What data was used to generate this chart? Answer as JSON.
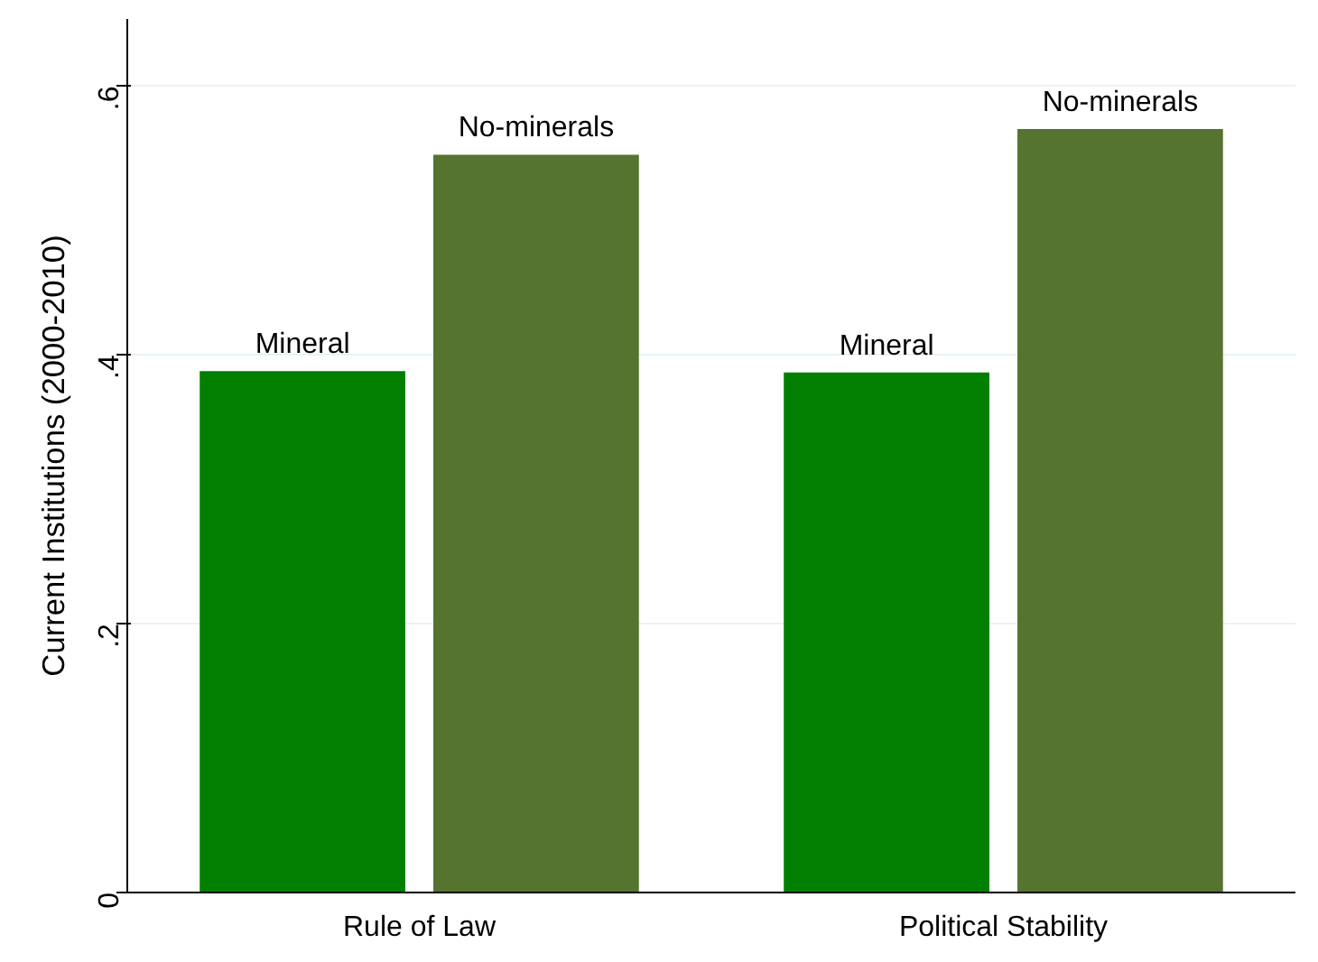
{
  "chart_data": {
    "type": "bar",
    "ylabel": "Current Institutions (2000-2010)",
    "categories": [
      "Rule of Law",
      "Political Stability"
    ],
    "series": [
      {
        "name": "Mineral",
        "color": "#007f00",
        "values": [
          0.388,
          0.387
        ]
      },
      {
        "name": "No-minerals",
        "color": "#557430",
        "values": [
          0.549,
          0.568
        ]
      }
    ],
    "ylim": [
      0,
      0.65
    ],
    "yticks": [
      {
        "value": 0,
        "label": "0"
      },
      {
        "value": 0.2,
        "label": ".2"
      },
      {
        "value": 0.4,
        "label": ".4"
      },
      {
        "value": 0.6,
        "label": ".6"
      }
    ],
    "grid": "y"
  }
}
